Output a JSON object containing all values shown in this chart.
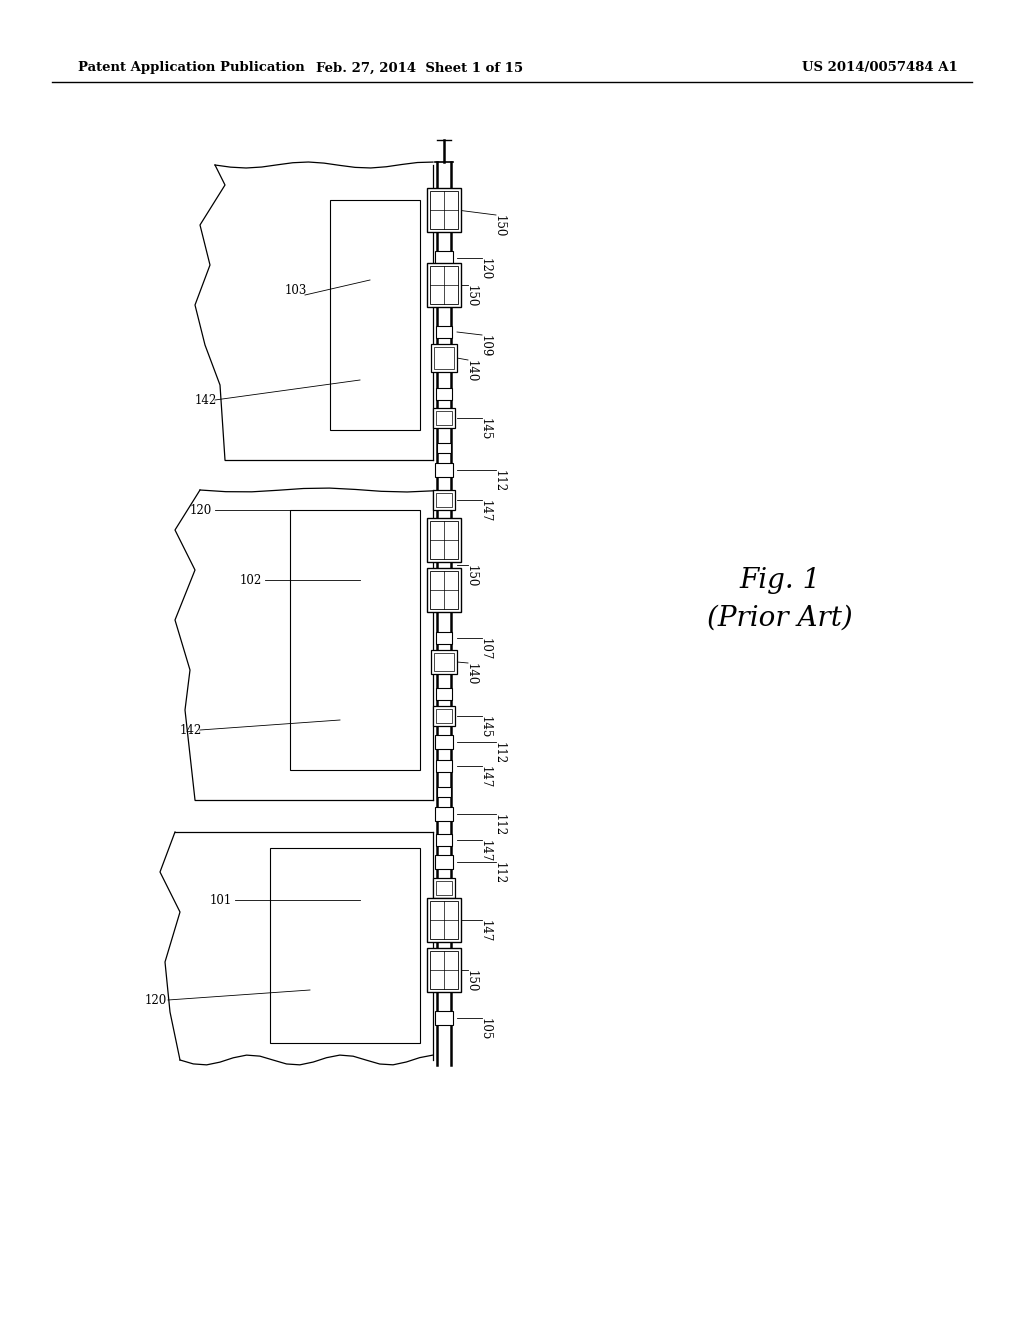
{
  "background_color": "#ffffff",
  "header_left": "Patent Application Publication",
  "header_center": "Feb. 27, 2014  Sheet 1 of 15",
  "header_right": "US 2014/0057484 A1",
  "fig_label": "Fig. 1",
  "fig_sublabel": "(Prior Art)",
  "header_fontsize": 9.5,
  "fig_label_fontsize": 20,
  "fig_sublabel_fontsize": 20
}
